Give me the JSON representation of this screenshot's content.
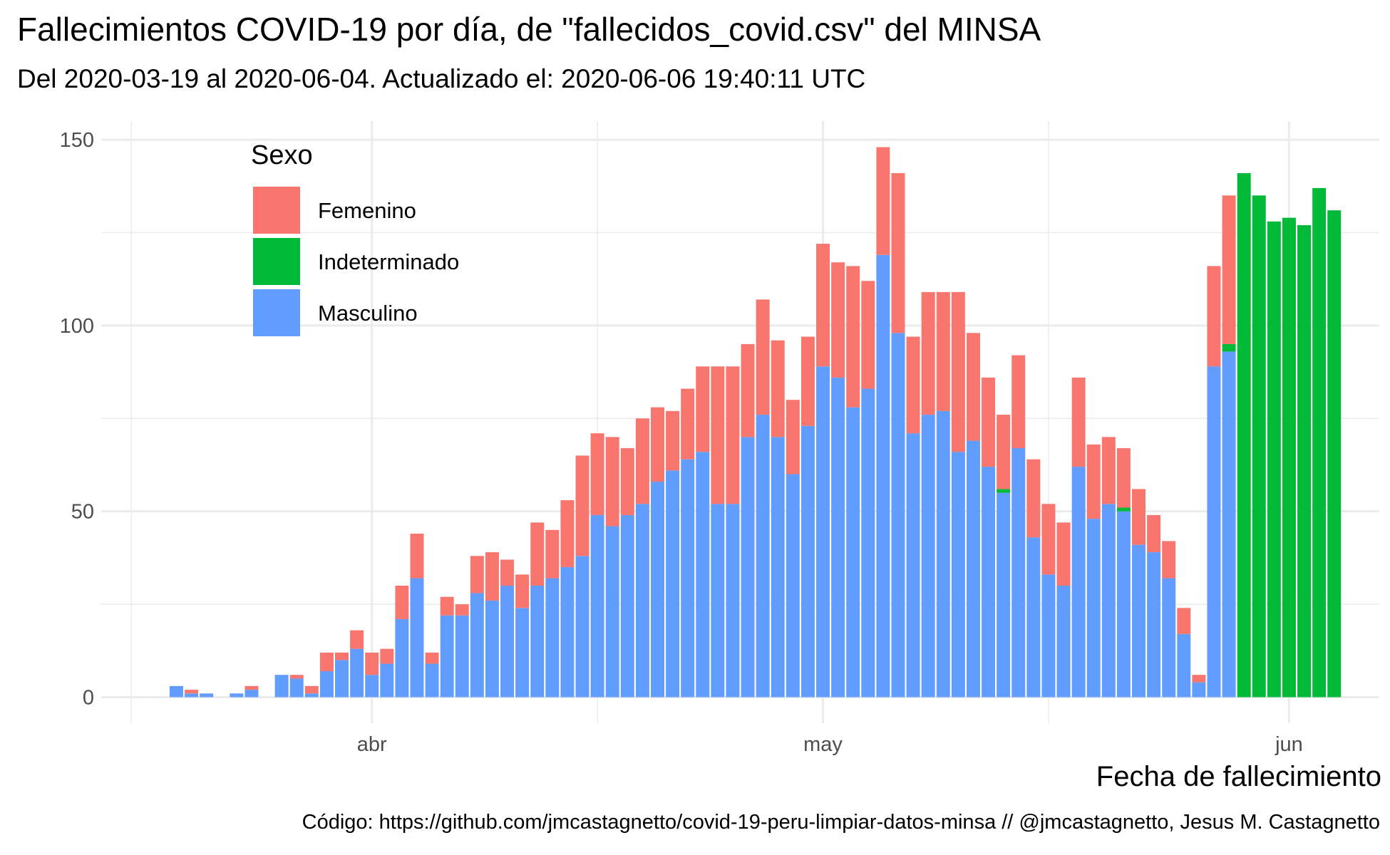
{
  "chart_data": {
    "type": "bar",
    "stacked": true,
    "title": "Fallecimientos COVID-19 por día, de \"fallecidos_covid.csv\" del MINSA",
    "subtitle": "Del 2020-03-19 al 2020-06-04. Actualizado el: 2020-06-06 19:40:11 UTC",
    "xlabel": "Fecha de fallecimiento",
    "ylabel": "",
    "caption": "Código: https://github.com/jmcastagnetto/covid-19-peru-limpiar-datos-minsa // @jmcastagnetto, Jesus M. Castagnetto",
    "x_start": "2020-03-19",
    "x_end": "2020-06-04",
    "xlim": [
      "2020-03-14",
      "2020-06-07"
    ],
    "ylim": [
      -7,
      155
    ],
    "y_ticks": [
      0,
      50,
      100,
      150
    ],
    "x_ticks": [
      {
        "date": "2020-04-01",
        "label": "abr"
      },
      {
        "date": "2020-05-01",
        "label": "may"
      },
      {
        "date": "2020-06-01",
        "label": "jun"
      }
    ],
    "x_minor_ticks": [
      "2020-03-16",
      "2020-04-16",
      "2020-05-16"
    ],
    "grid": true,
    "legend": {
      "title": "Sexo",
      "position": "top-left"
    },
    "series": [
      {
        "name": "Masculino",
        "color": "#619CFF",
        "values": [
          3,
          1,
          1,
          0,
          1,
          2,
          0,
          6,
          5,
          1,
          7,
          10,
          13,
          6,
          9,
          21,
          32,
          9,
          22,
          22,
          28,
          26,
          30,
          24,
          30,
          32,
          35,
          38,
          49,
          46,
          49,
          52,
          58,
          61,
          64,
          66,
          52,
          52,
          70,
          76,
          70,
          60,
          73,
          89,
          86,
          78,
          83,
          119,
          98,
          71,
          76,
          77,
          66,
          69,
          62,
          55,
          67,
          43,
          33,
          30,
          62,
          48,
          52,
          50,
          41,
          39,
          32,
          17,
          4,
          89,
          93,
          0,
          0,
          0,
          0,
          0,
          0,
          0
        ]
      },
      {
        "name": "Femenino",
        "color": "#F8766D",
        "values": [
          0,
          1,
          0,
          0,
          0,
          1,
          0,
          0,
          1,
          2,
          5,
          2,
          5,
          6,
          4,
          9,
          12,
          3,
          5,
          3,
          10,
          13,
          7,
          9,
          17,
          13,
          18,
          27,
          22,
          24,
          18,
          23,
          20,
          16,
          19,
          23,
          37,
          37,
          25,
          31,
          26,
          20,
          24,
          33,
          31,
          38,
          29,
          29,
          43,
          26,
          33,
          32,
          43,
          29,
          24,
          20,
          25,
          21,
          19,
          17,
          24,
          20,
          18,
          16,
          15,
          10,
          10,
          7,
          2,
          27,
          40,
          0,
          0,
          0,
          0,
          0,
          0,
          0
        ]
      },
      {
        "name": "Indeterminado",
        "color": "#00BA38",
        "values": [
          0,
          0,
          0,
          0,
          0,
          0,
          0,
          0,
          0,
          0,
          0,
          0,
          0,
          0,
          0,
          0,
          0,
          0,
          0,
          0,
          0,
          0,
          0,
          0,
          0,
          0,
          0,
          0,
          0,
          0,
          0,
          0,
          0,
          0,
          0,
          0,
          0,
          0,
          0,
          0,
          0,
          0,
          0,
          0,
          0,
          0,
          0,
          0,
          0,
          0,
          0,
          0,
          0,
          0,
          0,
          1,
          0,
          0,
          0,
          0,
          0,
          0,
          0,
          1,
          0,
          0,
          0,
          0,
          0,
          0,
          2,
          141,
          135,
          128,
          129,
          127,
          137,
          131
        ]
      }
    ]
  }
}
